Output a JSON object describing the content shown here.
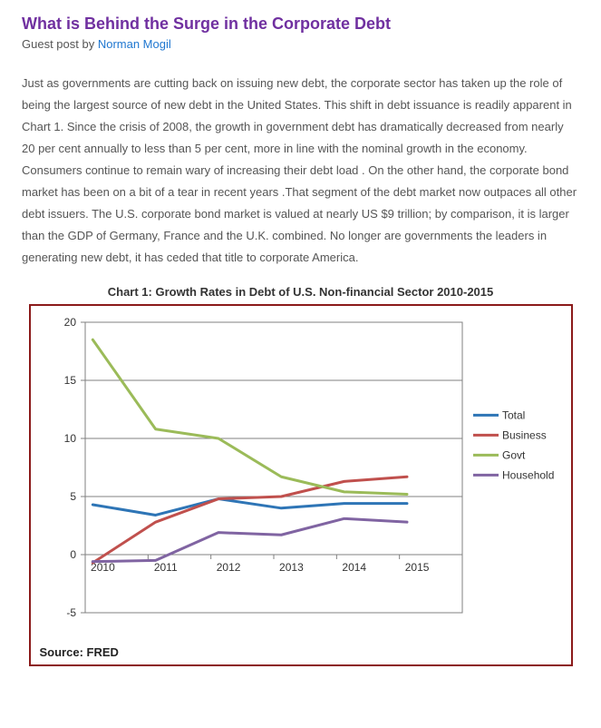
{
  "article": {
    "title": "What is Behind the Surge in the Corporate Debt",
    "byline_prefix": "Guest post by ",
    "author": "Norman Mogil",
    "body": "Just as governments are cutting back on issuing new debt, the corporate sector has taken up the role of being the largest source of new debt in the United States. This shift in debt issuance is readily apparent in Chart 1. Since the crisis of 2008, the growth in government debt has dramatically decreased from nearly 20 per cent annually to less than 5 per cent, more in line with the nominal growth in the economy. Consumers continue to remain wary of increasing their debt load . On the other hand, the corporate bond market has been on a bit of a tear in recent years .That segment of the debt market now outpaces all other debt issuers. The U.S. corporate bond market is valued at nearly US $9 trillion; by comparison, it is larger than the GDP of Germany, France and the U.K. combined. No longer are governments the leaders in generating new debt, it has ceded that title to corporate America."
  },
  "chart": {
    "title": "Chart 1: Growth Rates in Debt of U.S. Non-financial Sector 2010-2015",
    "source": "Source: FRED",
    "x_categories": [
      "2010",
      "2011",
      "2012",
      "2013",
      "2014",
      "2015"
    ],
    "y_ticks": [
      -5,
      0,
      5,
      10,
      15,
      20
    ],
    "ylim": [
      -5,
      20
    ],
    "plot_border_color": "#808080",
    "grid_color": "#808080",
    "grid_width": 1,
    "background_color": "#ffffff",
    "axis_font_size": 12,
    "line_width": 3,
    "series": [
      {
        "name": "Total",
        "color": "#2e75b6",
        "values": [
          4.3,
          3.4,
          4.8,
          4.0,
          4.4,
          4.4
        ]
      },
      {
        "name": "Business",
        "color": "#c0504d",
        "values": [
          -0.7,
          2.8,
          4.8,
          5.0,
          6.3,
          6.7
        ]
      },
      {
        "name": "Govt",
        "color": "#9bbb59",
        "values": [
          18.5,
          10.8,
          10.0,
          6.7,
          5.4,
          5.2
        ]
      },
      {
        "name": "Household",
        "color": "#8064a2",
        "values": [
          -0.6,
          -0.5,
          1.9,
          1.7,
          3.1,
          2.8
        ]
      }
    ],
    "legend_position": "right"
  }
}
